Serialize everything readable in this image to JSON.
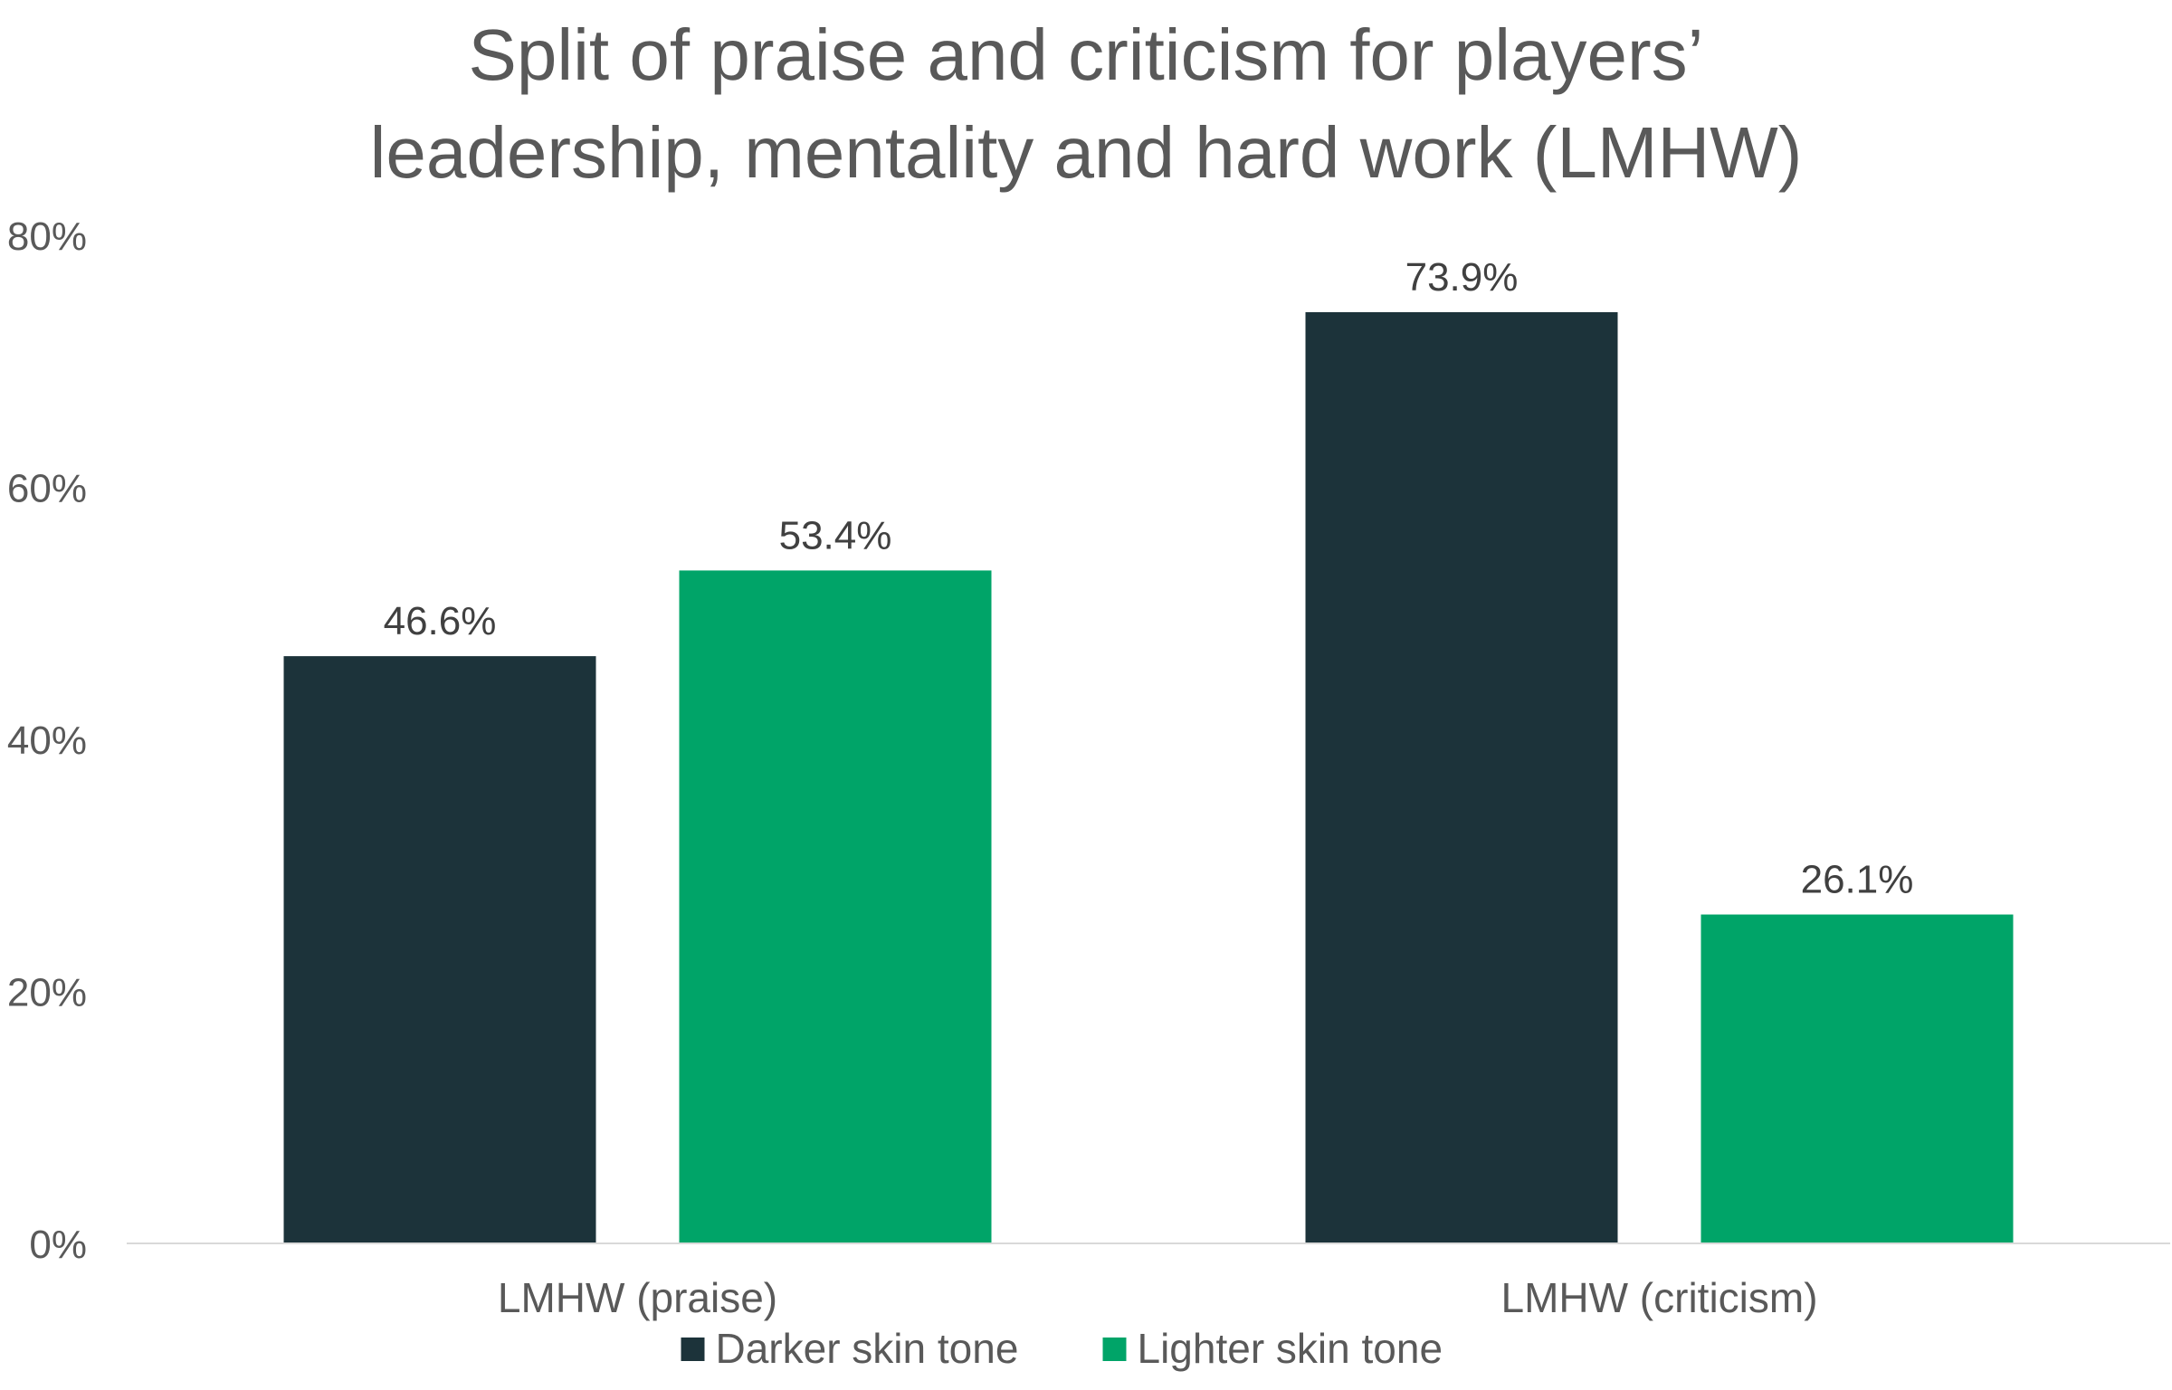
{
  "chart_data": {
    "type": "bar",
    "title_lines": [
      "Split of praise and criticism for players’",
      "leadership, mentality and hard work (LMHW)"
    ],
    "categories": [
      "LMHW (praise)",
      "LMHW (criticism)"
    ],
    "series": [
      {
        "name": "Darker skin tone",
        "values": [
          46.6,
          73.9
        ],
        "labels": [
          "46.6%",
          "73.9%"
        ],
        "color": "#1c333a"
      },
      {
        "name": "Lighter skin tone",
        "values": [
          53.4,
          26.1
        ],
        "labels": [
          "53.4%",
          "26.1%"
        ],
        "color": "#00a468"
      }
    ],
    "ylim": [
      0,
      80
    ],
    "y_ticks": [
      0,
      20,
      40,
      60,
      80
    ],
    "y_tick_labels": [
      "0%",
      "20%",
      "40%",
      "60%",
      "80%"
    ],
    "xlabel": "",
    "ylabel": "",
    "grid": false,
    "legend_position": "bottom",
    "axis_line_color": "#d9d9d9"
  }
}
